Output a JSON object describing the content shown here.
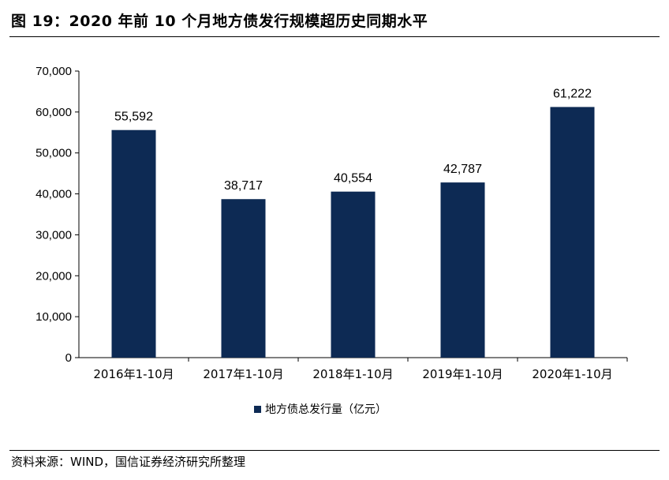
{
  "figure": {
    "title": "图 19：2020 年前 10 个月地方债发行规模超历史同期水平",
    "source": "资料来源：WIND，国信证券经济研究所整理"
  },
  "colors": {
    "bar": "#0D2A54",
    "axis": "#000000"
  },
  "chart_data": {
    "type": "bar",
    "categories": [
      "2016年1-10月",
      "2017年1-10月",
      "2018年1-10月",
      "2019年1-10月",
      "2020年1-10月"
    ],
    "series": [
      {
        "name": "地方债总发行量（亿元）",
        "values": [
          55592,
          38717,
          40554,
          42787,
          61222
        ]
      }
    ],
    "value_labels": [
      "55,592",
      "38,717",
      "40,554",
      "42,787",
      "61,222"
    ],
    "ylim": [
      0,
      70000
    ],
    "yticks": [
      0,
      10000,
      20000,
      30000,
      40000,
      50000,
      60000,
      70000
    ],
    "ytick_labels": [
      "0",
      "10,000",
      "20,000",
      "30,000",
      "40,000",
      "50,000",
      "60,000",
      "70,000"
    ],
    "xlabel": "",
    "ylabel": "",
    "grid": false,
    "legend": "bottom-center"
  }
}
